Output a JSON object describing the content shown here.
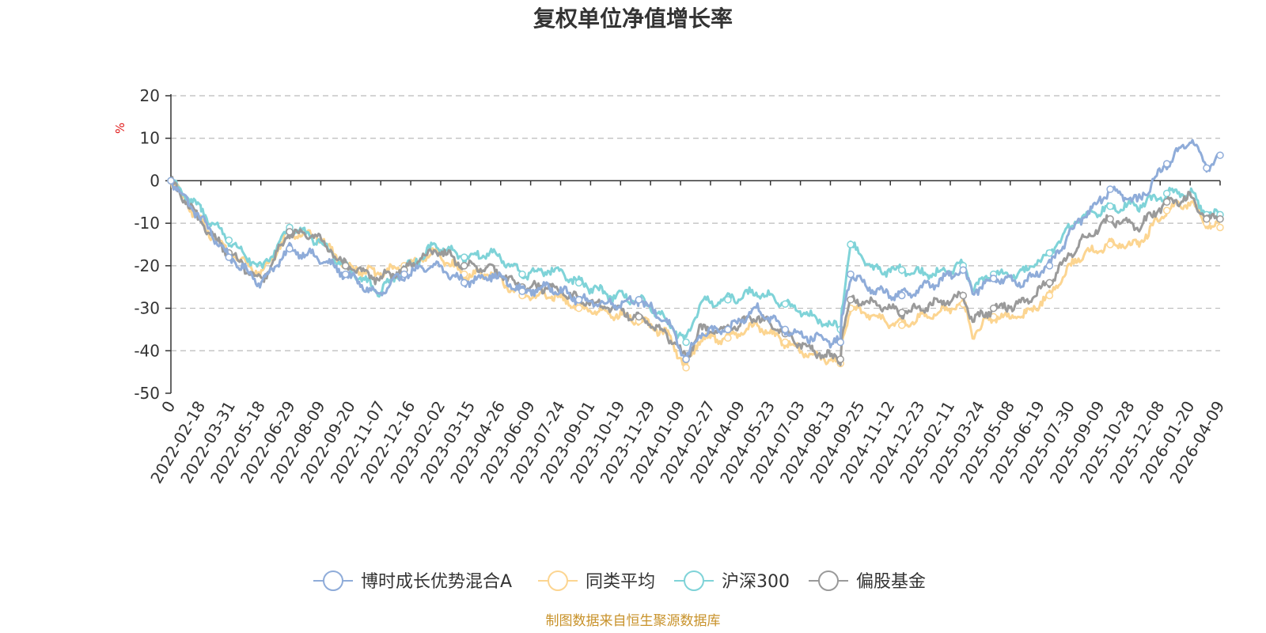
{
  "colors": {
    "series": [
      "#8facd9",
      "#fcd591",
      "#7fd3d8",
      "#9a9a9a"
    ],
    "axis": "#333333",
    "grid": "#bbbbbb",
    "unit": "#e01818",
    "source": "#c8922a"
  },
  "source_text": "制图数据来自恒生聚源数据库",
  "chart_data": {
    "type": "line",
    "title": "复权单位净值增长率",
    "ylabel": "%",
    "ylim": [
      -50,
      20
    ],
    "yticks": [
      20,
      10,
      0,
      -10,
      -20,
      -30,
      -40,
      -50
    ],
    "grid": "horizontal dashed",
    "legend_position": "bottom",
    "x_tick_labels": [
      "0",
      "2022-02-18",
      "2022-03-31",
      "2022-05-18",
      "2022-06-29",
      "2022-08-09",
      "2022-09-20",
      "2022-11-07",
      "2022-12-16",
      "2023-02-02",
      "2023-03-15",
      "2023-04-26",
      "2023-06-09",
      "2023-07-24",
      "2023-09-01",
      "2023-10-19",
      "2023-11-29",
      "2024-01-09",
      "2024-02-27",
      "2024-04-09",
      "2024-05-23",
      "2024-07-03",
      "2024-08-13",
      "2024-09-25",
      "2024-11-12",
      "2024-12-23",
      "2025-02-11",
      "2025-03-24",
      "2025-05-08",
      "2025-06-19",
      "2025-07-30",
      "2025-09-09",
      "2025-10-28",
      "2025-12-08",
      "2026-01-20",
      "2026-04-09"
    ],
    "x": [
      "2022-01-04",
      "2022-02-18",
      "2022-03-31",
      "2022-05-18",
      "2022-06-29",
      "2022-08-09",
      "2022-09-20",
      "2022-11-07",
      "2022-12-16",
      "2023-02-02",
      "2023-03-15",
      "2023-04-26",
      "2023-06-09",
      "2023-07-24",
      "2023-09-01",
      "2023-10-19",
      "2023-11-29",
      "2024-01-09",
      "2024-02-07",
      "2024-02-27",
      "2024-04-09",
      "2024-05-23",
      "2024-07-03",
      "2024-08-13",
      "2024-09-23",
      "2024-09-25",
      "2024-10-08",
      "2024-11-12",
      "2024-12-23",
      "2025-02-11",
      "2025-03-24",
      "2025-04-07",
      "2025-05-08",
      "2025-06-19",
      "2025-07-30",
      "2025-09-09",
      "2025-10-28",
      "2025-12-08",
      "2026-01-20",
      "2026-02-25",
      "2026-03-20",
      "2026-04-09"
    ],
    "series": [
      {
        "name": "博时成长优势混合A",
        "values": [
          0,
          -9,
          -18,
          -24,
          -16,
          -18,
          -22,
          -27,
          -22,
          -20,
          -24,
          -22,
          -26,
          -25,
          -28,
          -29,
          -28,
          -33,
          -42,
          -36,
          -35,
          -30,
          -35,
          -37,
          -38,
          -33,
          -22,
          -26,
          -27,
          -24,
          -21,
          -26,
          -23,
          -24,
          -20,
          -10,
          -2,
          -5,
          4,
          10,
          3,
          6
        ]
      },
      {
        "name": "同类平均",
        "values": [
          0,
          -10,
          -17,
          -22,
          -12,
          -13,
          -20,
          -22,
          -20,
          -17,
          -22,
          -22,
          -27,
          -27,
          -30,
          -31,
          -33,
          -36,
          -44,
          -37,
          -37,
          -34,
          -38,
          -41,
          -43,
          -38,
          -30,
          -32,
          -34,
          -31,
          -29,
          -36,
          -32,
          -32,
          -27,
          -18,
          -15,
          -15,
          -7,
          -5,
          -10,
          -11
        ]
      },
      {
        "name": "沪深300",
        "values": [
          0,
          -7,
          -14,
          -21,
          -11,
          -14,
          -20,
          -26,
          -21,
          -15,
          -18,
          -17,
          -22,
          -21,
          -24,
          -27,
          -28,
          -33,
          -38,
          -29,
          -28,
          -26,
          -29,
          -32,
          -35,
          -30,
          -15,
          -21,
          -21,
          -22,
          -20,
          -25,
          -22,
          -22,
          -17,
          -9,
          -6,
          -6,
          -3,
          -3,
          -8,
          -8
        ]
      },
      {
        "name": "偏股基金",
        "values": [
          0,
          -10,
          -17,
          -24,
          -12,
          -13,
          -20,
          -23,
          -21,
          -16,
          -20,
          -21,
          -25,
          -25,
          -28,
          -30,
          -32,
          -36,
          -42,
          -35,
          -35,
          -32,
          -36,
          -40,
          -42,
          -36,
          -28,
          -29,
          -31,
          -29,
          -27,
          -33,
          -30,
          -29,
          -24,
          -15,
          -9,
          -11,
          -5,
          -4,
          -9,
          -9
        ]
      }
    ]
  }
}
